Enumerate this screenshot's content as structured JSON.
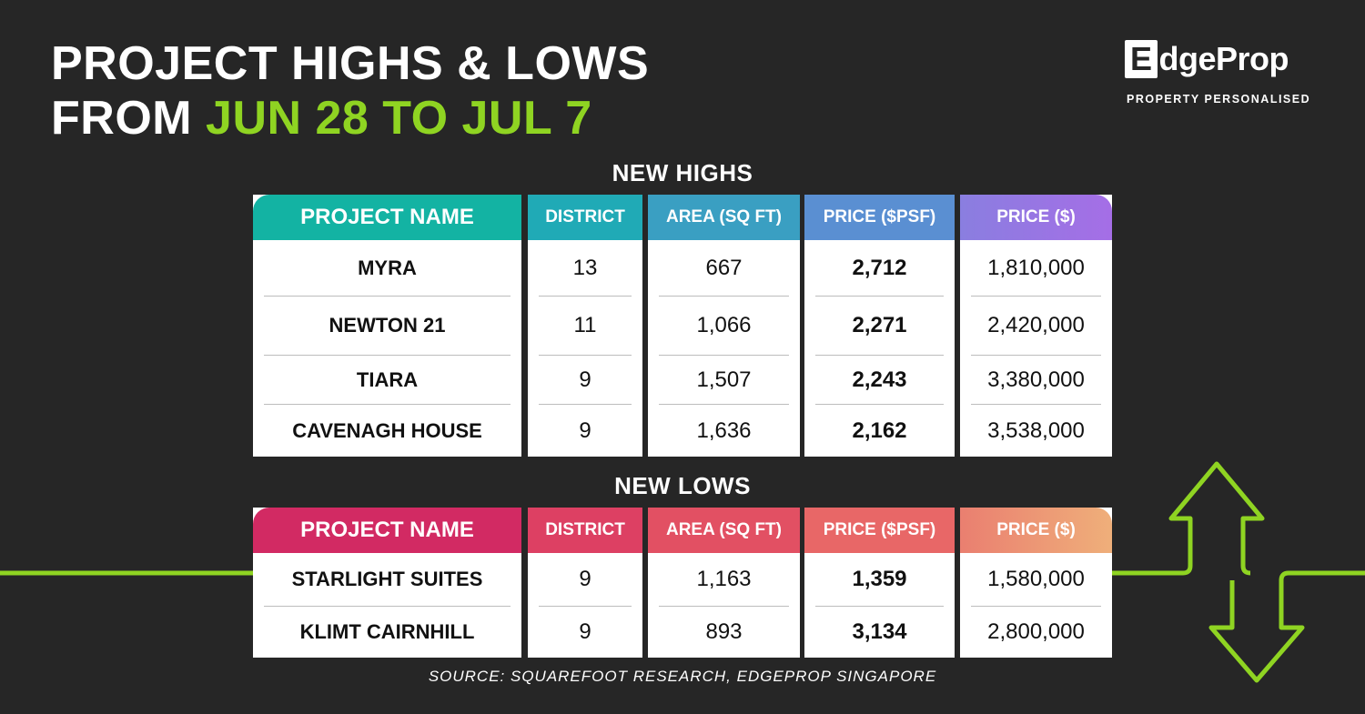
{
  "header": {
    "title_line1": "PROJECT HIGHS & LOWS",
    "title_line2_prefix": "FROM ",
    "title_line2_accent": "JUN 28 TO JUL 7"
  },
  "logo": {
    "word_e": "E",
    "word_rest": "dgeProp",
    "tagline": "PROPERTY PERSONALISED"
  },
  "highs": {
    "title": "NEW HIGHS",
    "columns": [
      "PROJECT NAME",
      "DISTRICT",
      "AREA (SQ FT)",
      "PRICE ($PSF)",
      "PRICE ($)"
    ],
    "rows": [
      [
        "MYRA",
        "13",
        "667",
        "2,712",
        "1,810,000"
      ],
      [
        "NEWTON 21",
        "11",
        "1,066",
        "2,271",
        "2,420,000"
      ],
      [
        "TIARA",
        "9",
        "1,507",
        "2,243",
        "3,380,000"
      ],
      [
        "CAVENAGH HOUSE",
        "9",
        "1,636",
        "2,162",
        "3,538,000"
      ]
    ]
  },
  "lows": {
    "title": "NEW LOWS",
    "columns": [
      "PROJECT NAME",
      "DISTRICT",
      "AREA (SQ FT)",
      "PRICE ($PSF)",
      "PRICE ($)"
    ],
    "rows": [
      [
        "STARLIGHT SUITES",
        "9",
        "1,163",
        "1,359",
        "1,580,000"
      ],
      [
        "KLIMT CAIRNHILL",
        "9",
        "893",
        "3,134",
        "2,800,000"
      ]
    ]
  },
  "source": "SOURCE: SQUAREFOOT RESEARCH, EDGEPROP SINGAPORE",
  "colors": {
    "accent": "#8fd422",
    "background": "#262626"
  }
}
